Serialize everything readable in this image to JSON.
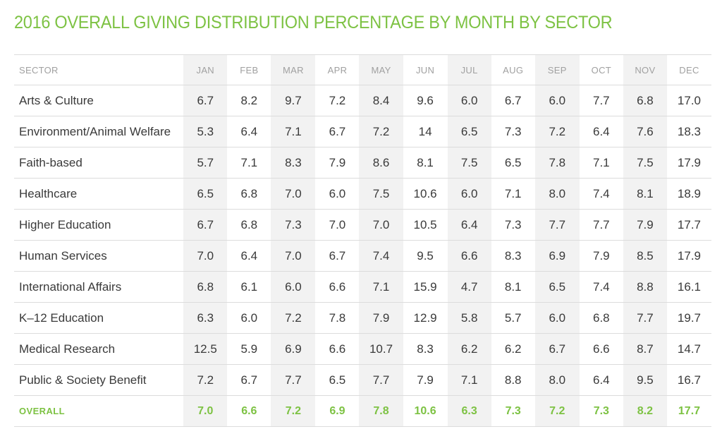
{
  "title": "2016 OVERALL GIVING DISTRIBUTION PERCENTAGE BY MONTH BY SECTOR",
  "colors": {
    "accent": "#7dc243",
    "header_text": "#a0a0a0",
    "shade": "#f2f2f2"
  },
  "chart_data": {
    "type": "table",
    "title": "2016 OVERALL GIVING DISTRIBUTION PERCENTAGE BY MONTH BY SECTOR",
    "row_header": "SECTOR",
    "columns": [
      "JAN",
      "FEB",
      "MAR",
      "APR",
      "MAY",
      "JUN",
      "JUL",
      "AUG",
      "SEP",
      "OCT",
      "NOV",
      "DEC"
    ],
    "rows": [
      {
        "sector": "Arts & Culture",
        "values": [
          "6.7",
          "8.2",
          "9.7",
          "7.2",
          "8.4",
          "9.6",
          "6.0",
          "6.7",
          "6.0",
          "7.7",
          "6.8",
          "17.0"
        ]
      },
      {
        "sector": "Environment/Animal Welfare",
        "values": [
          "5.3",
          "6.4",
          "7.1",
          "6.7",
          "7.2",
          "14",
          "6.5",
          "7.3",
          "7.2",
          "6.4",
          "7.6",
          "18.3"
        ]
      },
      {
        "sector": "Faith-based",
        "values": [
          "5.7",
          "7.1",
          "8.3",
          "7.9",
          "8.6",
          "8.1",
          "7.5",
          "6.5",
          "7.8",
          "7.1",
          "7.5",
          "17.9"
        ]
      },
      {
        "sector": "Healthcare",
        "values": [
          "6.5",
          "6.8",
          "7.0",
          "6.0",
          "7.5",
          "10.6",
          "6.0",
          "7.1",
          "8.0",
          "7.4",
          "8.1",
          "18.9"
        ]
      },
      {
        "sector": "Higher Education",
        "values": [
          "6.7",
          "6.8",
          "7.3",
          "7.0",
          "7.0",
          "10.5",
          "6.4",
          "7.3",
          "7.7",
          "7.7",
          "7.9",
          "17.7"
        ]
      },
      {
        "sector": "Human Services",
        "values": [
          "7.0",
          "6.4",
          "7.0",
          "6.7",
          "7.4",
          "9.5",
          "6.6",
          "8.3",
          "6.9",
          "7.9",
          "8.5",
          "17.9"
        ]
      },
      {
        "sector": "International Affairs",
        "values": [
          "6.8",
          "6.1",
          "6.0",
          "6.6",
          "7.1",
          "15.9",
          "4.7",
          "8.1",
          "6.5",
          "7.4",
          "8.8",
          "16.1"
        ]
      },
      {
        "sector": "K–12 Education",
        "values": [
          "6.3",
          "6.0",
          "7.2",
          "7.8",
          "7.9",
          "12.9",
          "5.8",
          "5.7",
          "6.0",
          "6.8",
          "7.7",
          "19.7"
        ]
      },
      {
        "sector": "Medical Research",
        "values": [
          "12.5",
          "5.9",
          "6.9",
          "6.6",
          "10.7",
          "8.3",
          "6.2",
          "6.2",
          "6.7",
          "6.6",
          "8.7",
          "14.7"
        ]
      },
      {
        "sector": "Public & Society Benefit",
        "values": [
          "7.2",
          "6.7",
          "7.7",
          "6.5",
          "7.7",
          "7.9",
          "7.1",
          "8.8",
          "8.0",
          "6.4",
          "9.5",
          "16.7"
        ]
      }
    ],
    "overall": {
      "label": "OVERALL",
      "values": [
        "7.0",
        "6.6",
        "7.2",
        "6.9",
        "7.8",
        "10.6",
        "6.3",
        "7.3",
        "7.2",
        "7.3",
        "8.2",
        "17.7"
      ]
    }
  }
}
